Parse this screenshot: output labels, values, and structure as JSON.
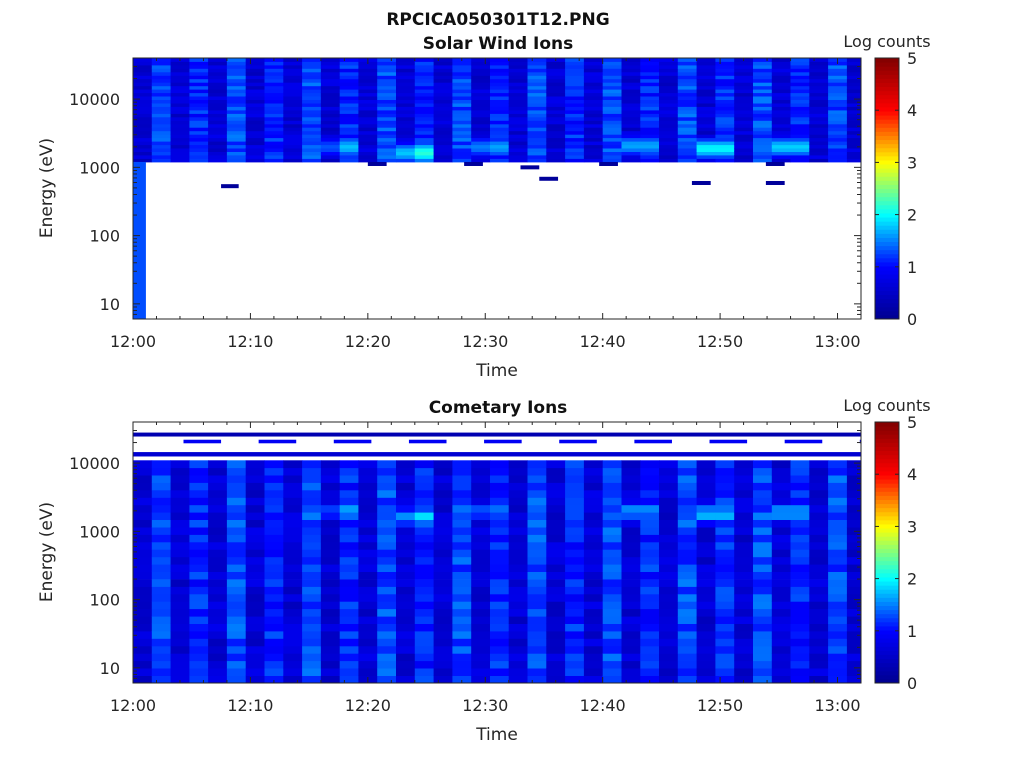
{
  "figure": {
    "title": "RPCICA050301T12.PNG"
  },
  "colormap": [
    "#00008f",
    "#0000ff",
    "#00ffff",
    "#ffff00",
    "#ff0000",
    "#800000"
  ],
  "chart_data": [
    {
      "type": "heatmap",
      "title": "Solar Wind Ions",
      "xlabel": "Time",
      "ylabel": "Energy (eV)",
      "colorbar_label": "Log counts",
      "colorbar_ticks": [
        "0",
        "1",
        "2",
        "3",
        "4",
        "5"
      ],
      "clim": [
        0,
        5
      ],
      "x_ticks": [
        "12:00",
        "12:10",
        "12:20",
        "12:30",
        "12:40",
        "12:50",
        "13:00"
      ],
      "x_tick_minutes": [
        0,
        10,
        20,
        30,
        40,
        50,
        60
      ],
      "xlim_minutes": [
        0,
        62
      ],
      "y_scale": "log",
      "y_ticks": [
        "10",
        "100",
        "1000",
        "10000"
      ],
      "y_tick_values": [
        10,
        100,
        1000,
        10000
      ],
      "ylim": [
        6,
        40000
      ],
      "time_bins_minutes": 1.6,
      "energy_band_ev": [
        1200,
        40000
      ],
      "hotspots": [
        {
          "t": 17.9,
          "e": 2000,
          "v": 1.9
        },
        {
          "t": 24.2,
          "e": 1650,
          "v": 2.4
        },
        {
          "t": 30.5,
          "e": 2000,
          "v": 1.9
        },
        {
          "t": 43.2,
          "e": 2100,
          "v": 2.0
        },
        {
          "t": 49.6,
          "e": 1900,
          "v": 2.4
        },
        {
          "t": 56.0,
          "e": 2000,
          "v": 2.2
        }
      ],
      "low_channel_strip": {
        "t_start": 0,
        "t_end": 1.1,
        "e_min": 6,
        "e_max": 1200,
        "v": 1.3
      },
      "isolated_marks": [
        {
          "t_start": 7.5,
          "t_end": 9.0,
          "e": 530,
          "v": 0.1
        },
        {
          "t_start": 20.0,
          "t_end": 21.6,
          "e": 1120,
          "v": 0.1
        },
        {
          "t_start": 28.2,
          "t_end": 29.8,
          "e": 1120,
          "v": 0.1
        },
        {
          "t_start": 33.0,
          "t_end": 34.6,
          "e": 1000,
          "v": 0.1
        },
        {
          "t_start": 34.6,
          "t_end": 36.2,
          "e": 680,
          "v": 0.1
        },
        {
          "t_start": 39.7,
          "t_end": 41.3,
          "e": 1120,
          "v": 0.1
        },
        {
          "t_start": 47.6,
          "t_end": 49.2,
          "e": 590,
          "v": 0.1
        },
        {
          "t_start": 53.9,
          "t_end": 55.5,
          "e": 590,
          "v": 0.1
        },
        {
          "t_start": 53.9,
          "t_end": 55.5,
          "e": 1120,
          "v": 0.1
        }
      ]
    },
    {
      "type": "heatmap",
      "title": "Cometary Ions",
      "xlabel": "Time",
      "ylabel": "Energy (eV)",
      "colorbar_label": "Log counts",
      "colorbar_ticks": [
        "0",
        "1",
        "2",
        "3",
        "4",
        "5"
      ],
      "clim": [
        0,
        5
      ],
      "x_ticks": [
        "12:00",
        "12:10",
        "12:20",
        "12:30",
        "12:40",
        "12:50",
        "13:00"
      ],
      "x_tick_minutes": [
        0,
        10,
        20,
        30,
        40,
        50,
        60
      ],
      "xlim_minutes": [
        0,
        62
      ],
      "y_scale": "log",
      "y_ticks": [
        "10",
        "100",
        "1000",
        "10000"
      ],
      "y_tick_values": [
        10,
        100,
        1000,
        10000
      ],
      "ylim": [
        6,
        40000
      ],
      "time_bins_minutes": 1.6,
      "energy_band_ev": [
        6,
        11000
      ],
      "hotspots": [
        {
          "t": 17.9,
          "e": 2000,
          "v": 1.8
        },
        {
          "t": 24.2,
          "e": 1650,
          "v": 2.1
        },
        {
          "t": 30.5,
          "e": 2000,
          "v": 1.7
        },
        {
          "t": 43.2,
          "e": 2000,
          "v": 1.9
        },
        {
          "t": 49.6,
          "e": 1800,
          "v": 2.1
        },
        {
          "t": 56.0,
          "e": 1900,
          "v": 2.0
        }
      ],
      "top_bands": [
        {
          "e_min": 24500,
          "e_max": 28000,
          "v": 0.3,
          "period_minutes": 0
        },
        {
          "e_min": 19500,
          "e_max": 22000,
          "v": 0.9,
          "period_minutes": 6.4,
          "phase": 4.3,
          "width": 3.2
        },
        {
          "e_min": 12500,
          "e_max": 14500,
          "v": 0.6,
          "period_minutes": 0
        }
      ]
    }
  ]
}
